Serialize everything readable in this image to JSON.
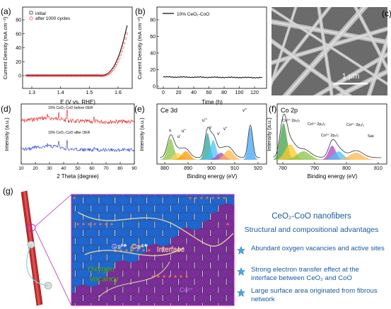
{
  "panel_a": {
    "label": "(a)",
    "ylabel": "Current Density (mA cm⁻²)",
    "xlabel": "E (V vs. RHE)",
    "xticks": [
      "1.3",
      "1.4",
      "1.5",
      "1.6"
    ],
    "yticks": [
      "0",
      "20",
      "40",
      "60",
      "80"
    ],
    "legend": [
      "initial",
      "after 1000 cycles"
    ]
  },
  "panel_b": {
    "label": "(b)",
    "ylabel": "Current Density (mA cm⁻²)",
    "xlabel": "Time (h)",
    "xticks": [
      "0",
      "20",
      "40",
      "60",
      "80",
      "100",
      "120"
    ],
    "yticks": [
      "0",
      "20",
      "40",
      "60",
      "80"
    ],
    "legend": [
      "10% CeO₂-CoO"
    ]
  },
  "panel_c": {
    "label": "(c)",
    "scalebar": "1 μm"
  },
  "panel_d": {
    "label": "(d)",
    "ylabel": "Intensity (a.u.)",
    "xlabel": "2 Theta (degree)",
    "xticks": [
      "10",
      "20",
      "30",
      "40",
      "50",
      "60",
      "70",
      "80",
      "90"
    ],
    "legend_top": "10% CeO₂-CoO before OER",
    "legend_bottom": "10% CeO₂-CoO after OER"
  },
  "panel_e": {
    "label": "(e)",
    "title": "Ce 3d",
    "ylabel": "Intensity (a.u.)",
    "xlabel": "Binding energy (eV)",
    "xticks": [
      "880",
      "890",
      "900",
      "910",
      "920"
    ],
    "peaks": [
      "u",
      "u'",
      "u''",
      "u'''",
      "v",
      "v'",
      "v''",
      "v'''"
    ]
  },
  "panel_f": {
    "label": "(f)",
    "title": "Co 2p",
    "ylabel": "Intensity (a.u.)",
    "xlabel": "Binding energy (eV)",
    "xticks": [
      "780",
      "790",
      "800",
      "810"
    ],
    "peaks": [
      "Co³⁺ 2p₃/₂",
      "Co²⁺ 2p₃/₂",
      "Co³⁺ 2p₁/₂",
      "Co²⁺ 2p₁/₂",
      "Sat."
    ]
  },
  "panel_g": {
    "label": "(g)",
    "labels": [
      "Ce³⁺",
      "Ce⁴⁺",
      "Interface",
      "Oxygen",
      "Vacancy",
      "Co²⁺"
    ]
  },
  "summary": {
    "title": "CeO₂-CoO nanofibers",
    "subtitle": "Structural and compositional advantages",
    "bullets": [
      "Abundant oxygen vacancies and active sites",
      "Strong electron transfer effect at the interface between CeO₂ and CoO",
      "Large surface area originated from fibrous network"
    ]
  },
  "colors": {
    "red": "#e41a1c",
    "blue": "#2233cc",
    "accent": "#1a5aa0",
    "magenta": "#c020c0",
    "star": "#49a8e0"
  }
}
